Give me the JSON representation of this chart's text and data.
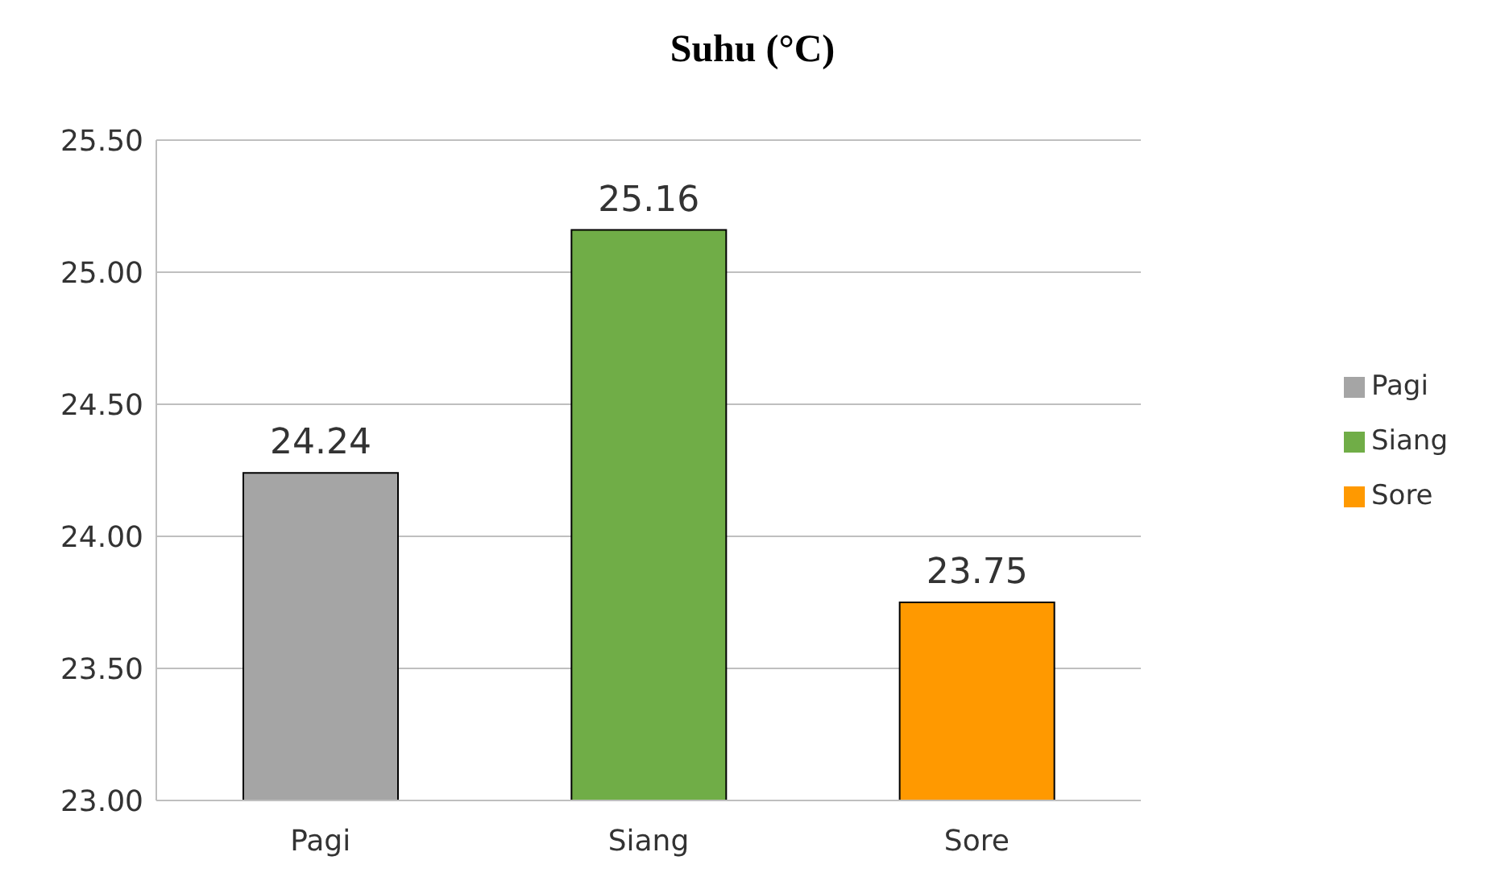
{
  "chart_data": {
    "type": "bar",
    "title": "Suhu (°C)",
    "categories": [
      "Pagi",
      "Siang",
      "Sore"
    ],
    "series": [
      {
        "name": "Pagi",
        "color": "#a5a5a5",
        "values": [
          24.24,
          null,
          null
        ]
      },
      {
        "name": "Siang",
        "color": "#70ad47",
        "values": [
          null,
          25.16,
          null
        ]
      },
      {
        "name": "Sore",
        "color": "#ff9900",
        "values": [
          null,
          null,
          23.75
        ]
      }
    ],
    "stacked": true,
    "ylim": [
      23.0,
      25.5
    ],
    "yticks": [
      {
        "value": 23.0,
        "label": "23.00"
      },
      {
        "value": 23.5,
        "label": "23.50"
      },
      {
        "value": 24.0,
        "label": "24.00"
      },
      {
        "value": 24.5,
        "label": "24.50"
      },
      {
        "value": 25.0,
        "label": "25.00"
      },
      {
        "value": 25.5,
        "label": "25.50"
      }
    ],
    "grid": "y",
    "legend": "right",
    "data_labels": true
  }
}
